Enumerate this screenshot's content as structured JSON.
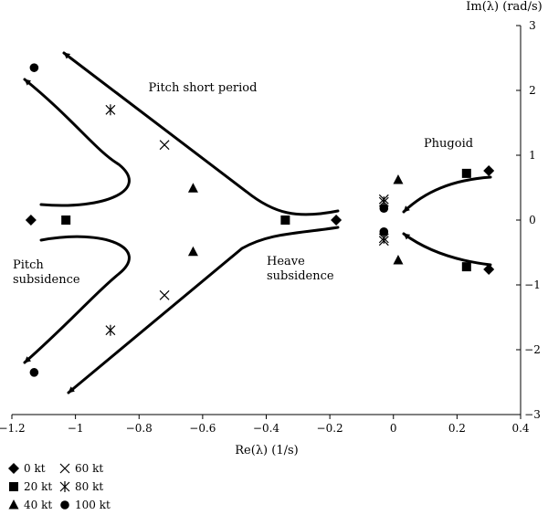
{
  "chart_data": {
    "type": "scatter",
    "xlabel": "Re(λ) (1/s)",
    "ylabel": "Im(λ) (rad/s)",
    "xlim": [
      -1.2,
      0.4
    ],
    "ylim": [
      -3,
      3
    ],
    "xticks": [
      -1.2,
      -1,
      -0.8,
      -0.6,
      -0.4,
      -0.2,
      0,
      0.2,
      0.4
    ],
    "xtick_labels": [
      "−1.2",
      "−1",
      "−0.8",
      "−0.6",
      "−0.4",
      "−0.2",
      "0",
      "0.2",
      "0.4"
    ],
    "yticks": [
      -3,
      -2,
      -1,
      0,
      1,
      2,
      3
    ],
    "ytick_labels": [
      "−3",
      "−2",
      "−1",
      "0",
      "1",
      "2",
      "3"
    ],
    "grid": false,
    "legend_position": "bottom-left",
    "series": [
      {
        "name": "0 kt",
        "marker": "diamond",
        "points": [
          [
            -1.14,
            0
          ],
          [
            -0.18,
            0
          ],
          [
            0.3,
            0.76
          ],
          [
            0.3,
            -0.76
          ]
        ]
      },
      {
        "name": "20 kt",
        "marker": "square",
        "points": [
          [
            -1.03,
            0
          ],
          [
            -0.34,
            0
          ],
          [
            0.23,
            0.72
          ],
          [
            0.23,
            -0.72
          ]
        ]
      },
      {
        "name": "40 kt",
        "marker": "triangle",
        "points": [
          [
            -0.63,
            0.49
          ],
          [
            -0.63,
            -0.49
          ],
          [
            0.015,
            0.62
          ],
          [
            0.015,
            -0.62
          ]
        ]
      },
      {
        "name": "60 kt",
        "marker": "x",
        "points": [
          [
            -0.72,
            1.16
          ],
          [
            -0.72,
            -1.16
          ],
          [
            -0.03,
            0.32
          ],
          [
            -0.03,
            -0.32
          ]
        ]
      },
      {
        "name": "80 kt",
        "marker": "asterisk",
        "points": [
          [
            -0.89,
            1.7
          ],
          [
            -0.89,
            -1.7
          ],
          [
            -0.03,
            0.28
          ],
          [
            -0.03,
            -0.28
          ]
        ]
      },
      {
        "name": "100 kt",
        "marker": "circle",
        "points": [
          [
            -1.13,
            2.35
          ],
          [
            -1.13,
            -2.35
          ],
          [
            -0.03,
            0.18
          ],
          [
            -0.03,
            -0.18
          ]
        ]
      }
    ],
    "annotations": [
      "Pitch short period",
      "Phugoid",
      "Pitch subsidence",
      "Heave subsidence"
    ]
  }
}
